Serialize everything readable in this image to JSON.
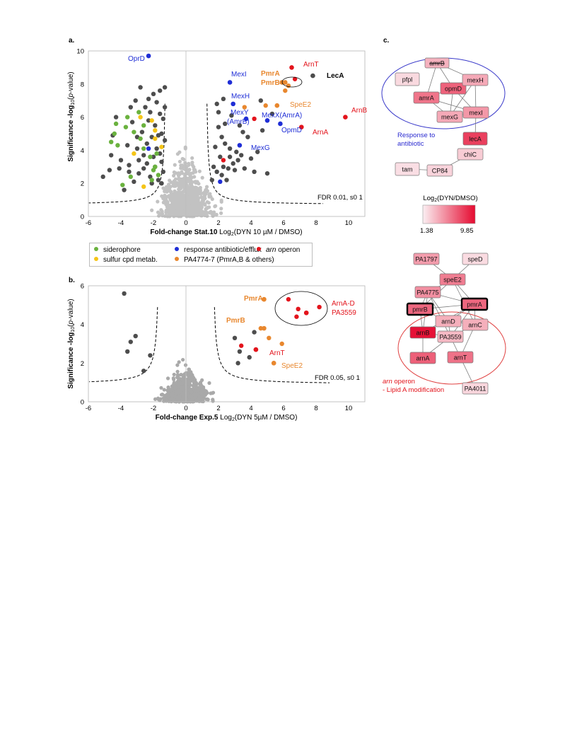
{
  "panels": {
    "a": {
      "label": "a.",
      "fdr": "FDR 0.01, s0 1"
    },
    "b": {
      "label": "b.",
      "fdr": "FDR 0.05, s0 1"
    },
    "c": {
      "label": "c."
    }
  },
  "colors": {
    "background_points": "#c2c2c2",
    "background_points_b": "#a9a9a9",
    "significant": "#4d4d4d",
    "siderophore": "#6ab23e",
    "sulfur": "#f5c518",
    "antibiotic": "#1f2ed6",
    "pa4774": "#e8872e",
    "arn": "#e3141c",
    "net_edge": "#7d7d7d",
    "net_border": "#777777",
    "ellipse_blue": "#3a3aca",
    "ellipse_red": "#e04040"
  },
  "legend": {
    "items": [
      {
        "label": "siderophore",
        "group": "siderophore"
      },
      {
        "label": "sulfur cpd metab.",
        "group": "sulfur"
      },
      {
        "label": "response antibiotic/efflux",
        "group": "antibiotic"
      },
      {
        "label": "PA4774-7 (PmrA,B & others)",
        "group": "pa4774"
      },
      {
        "label_italic": "arn",
        "label": " operon",
        "group": "arn"
      }
    ]
  },
  "chart_data": [
    {
      "type": "scatter",
      "panel": "a",
      "ylabel": "Significance -log10(p-value)",
      "ylabel_parts": [
        "Significance -log",
        "10",
        "(",
        "p",
        "-value)"
      ],
      "xlabel_bold": "Fold-change Stat.10",
      "xlabel_rest": " Log2(DYN 10 µM / DMSO)",
      "xlabel_rest_parts": [
        " Log",
        "2",
        "(DYN 10 µM / DMSO)"
      ],
      "xlim": [
        -6,
        11
      ],
      "ylim": [
        0,
        10
      ],
      "xticks": [
        -6,
        -4,
        -2,
        0,
        2,
        4,
        6,
        8,
        10
      ],
      "yticks": [
        0,
        2,
        4,
        6,
        8,
        10
      ],
      "threshold_s0": 1.2,
      "threshold_curve_c": 0.55,
      "threshold_floor": 0.7,
      "labeled_points": [
        {
          "name": "OprD",
          "x": -2.3,
          "y": 9.7,
          "group": "antibiotic"
        },
        {
          "name": "MexI",
          "x": 2.7,
          "y": 8.1,
          "group": "antibiotic"
        },
        {
          "name": "MexH",
          "x": 2.9,
          "y": 6.8,
          "group": "antibiotic"
        },
        {
          "name": "MexY (AmrB)",
          "x": 3.7,
          "y": 5.9,
          "group": "antibiotic"
        },
        {
          "name": "MexX(AmrA)",
          "x": 5.0,
          "y": 5.8,
          "group": "antibiotic"
        },
        {
          "name": "OpmD",
          "x": 5.8,
          "y": 5.6,
          "group": "antibiotic"
        },
        {
          "name": "MexG",
          "x": 3.3,
          "y": 4.3,
          "group": "antibiotic"
        },
        {
          "name": "PmrA",
          "x": 5.9,
          "y": 8.1,
          "group": "pa4774"
        },
        {
          "name": "PmrB",
          "x": 6.1,
          "y": 8.1,
          "group": "pa4774"
        },
        {
          "name": "SpeE2",
          "x": 5.6,
          "y": 6.7,
          "group": "pa4774"
        },
        {
          "name": "ArnT",
          "x": 6.5,
          "y": 9.0,
          "group": "arn"
        },
        {
          "name": "ArnB",
          "x": 9.8,
          "y": 6.0,
          "group": "arn"
        },
        {
          "name": "ArnA",
          "x": 7.1,
          "y": 5.4,
          "group": "arn"
        },
        {
          "name": "LecA",
          "x": 7.8,
          "y": 8.5,
          "group": "significant"
        }
      ],
      "annotation_labels": {
        "OprD": "OprD",
        "MexI": "MexI",
        "MexH": "MexH",
        "MexY": "MexY",
        "AmrB": "(AmrB)",
        "MexX": "MexX(AmrA)",
        "OpmD": "OpmD",
        "MexG": "MexG",
        "PmrA": "PmrA",
        "PmrB": "PmrB",
        "SpeE2": "SpeE2",
        "ArnT": "ArnT",
        "ArnB": "ArnB",
        "ArnA": "ArnA",
        "LecA": "LecA"
      },
      "group_points": {
        "siderophore": [
          [
            -4.6,
            4.5
          ],
          [
            -4.4,
            5.0
          ],
          [
            -4.2,
            4.3
          ],
          [
            -3.7,
            5.4
          ],
          [
            -3.6,
            6.0
          ],
          [
            -3.2,
            5.1
          ],
          [
            -2.9,
            6.3
          ],
          [
            -2.6,
            5.5
          ],
          [
            -2.6,
            4.1
          ],
          [
            -2.2,
            3.6
          ],
          [
            -2.1,
            2.2
          ],
          [
            -1.7,
            2.5
          ],
          [
            -1.9,
            3.0
          ],
          [
            -2.0,
            2.8
          ],
          [
            -4.3,
            5.6
          ],
          [
            -3.9,
            1.9
          ],
          [
            -3.4,
            2.4
          ],
          [
            -2.8,
            4.7
          ],
          [
            -1.8,
            3.8
          ]
        ],
        "sulfur": [
          [
            -2.8,
            6.0
          ],
          [
            -2.1,
            5.8
          ],
          [
            -1.9,
            4.7
          ],
          [
            -1.5,
            4.2
          ],
          [
            -3.2,
            3.8
          ],
          [
            -2.6,
            1.8
          ],
          [
            -1.9,
            5.2
          ]
        ],
        "antibiotic": [
          [
            2.1,
            2.1
          ],
          [
            -2.3,
            4.1
          ]
        ],
        "pa4774": [
          [
            3.6,
            6.6
          ],
          [
            4.9,
            6.7
          ],
          [
            6.1,
            7.6
          ],
          [
            6.3,
            7.9
          ]
        ],
        "arn": [
          [
            6.7,
            8.3
          ],
          [
            4.2,
            5.9
          ],
          [
            2.3,
            3.4
          ]
        ]
      },
      "significant_points": [
        [
          -5.1,
          2.4
        ],
        [
          -4.6,
          3.7
        ],
        [
          -4.5,
          4.9
        ],
        [
          -4.3,
          6.0
        ],
        [
          -4.1,
          2.9
        ],
        [
          -4.0,
          3.4
        ],
        [
          -3.8,
          1.6
        ],
        [
          -3.6,
          4.3
        ],
        [
          -3.5,
          3.1
        ],
        [
          -3.4,
          6.6
        ],
        [
          -3.3,
          5.7
        ],
        [
          -3.2,
          2.1
        ],
        [
          -3.1,
          7.0
        ],
        [
          -3.0,
          4.8
        ],
        [
          -2.9,
          3.4
        ],
        [
          -2.9,
          2.6
        ],
        [
          -2.8,
          7.8
        ],
        [
          -2.7,
          5.1
        ],
        [
          -2.6,
          2.9
        ],
        [
          -2.5,
          6.6
        ],
        [
          -2.4,
          4.4
        ],
        [
          -2.4,
          3.2
        ],
        [
          -2.3,
          7.1
        ],
        [
          -2.3,
          5.8
        ],
        [
          -2.2,
          6.3
        ],
        [
          -2.2,
          2.4
        ],
        [
          -2.1,
          4.8
        ],
        [
          -2.0,
          7.4
        ],
        [
          -2.0,
          3.6
        ],
        [
          -1.9,
          5.5
        ],
        [
          -1.9,
          3.0
        ],
        [
          -1.8,
          6.9
        ],
        [
          -1.8,
          4.1
        ],
        [
          -1.7,
          2.2
        ],
        [
          -1.6,
          6.2
        ],
        [
          -1.6,
          7.6
        ],
        [
          -1.5,
          5.0
        ],
        [
          -1.5,
          3.3
        ],
        [
          -1.4,
          2.7
        ],
        [
          -1.4,
          5.9
        ],
        [
          -1.3,
          7.8
        ],
        [
          -1.3,
          4.6
        ],
        [
          -1.3,
          6.6
        ],
        [
          -1.5,
          2.0
        ],
        [
          -1.6,
          3.8
        ],
        [
          -1.7,
          4.9
        ],
        [
          -2.1,
          2.0
        ],
        [
          -2.6,
          3.7
        ],
        [
          -3.0,
          4.1
        ],
        [
          -3.5,
          2.7
        ],
        [
          -4.7,
          2.8
        ],
        [
          1.6,
          2.2
        ],
        [
          1.7,
          3.0
        ],
        [
          1.8,
          4.2
        ],
        [
          1.9,
          2.7
        ],
        [
          2.0,
          5.4
        ],
        [
          2.0,
          6.3
        ],
        [
          2.1,
          3.6
        ],
        [
          2.2,
          2.5
        ],
        [
          2.2,
          4.8
        ],
        [
          2.3,
          3.0
        ],
        [
          2.4,
          4.4
        ],
        [
          2.4,
          5.6
        ],
        [
          2.6,
          2.9
        ],
        [
          2.7,
          4.1
        ],
        [
          2.7,
          3.6
        ],
        [
          2.8,
          6.1
        ],
        [
          2.9,
          3.2
        ],
        [
          3.0,
          2.8
        ],
        [
          3.1,
          3.9
        ],
        [
          3.2,
          3.4
        ],
        [
          3.4,
          3.7
        ],
        [
          3.5,
          5.1
        ],
        [
          3.6,
          2.9
        ],
        [
          3.8,
          4.8
        ],
        [
          4.0,
          3.5
        ],
        [
          4.2,
          2.7
        ],
        [
          4.4,
          3.9
        ],
        [
          4.7,
          5.2
        ],
        [
          5.0,
          2.6
        ],
        [
          1.9,
          6.8
        ],
        [
          2.3,
          7.1
        ],
        [
          3.3,
          5.5
        ],
        [
          2.5,
          2.2
        ],
        [
          4.6,
          7.0
        ],
        [
          5.3,
          6.2
        ]
      ],
      "background_cloud": {
        "sigma_x": 0.7,
        "sigma_y": 1.6,
        "count": 700,
        "seed": 7
      }
    },
    {
      "type": "scatter",
      "panel": "b",
      "ylabel": "Significance -log10(p-value)",
      "ylabel_parts": [
        "Significance -log",
        "10",
        "(",
        "p",
        "-value)"
      ],
      "xlabel_bold": "Fold-change Exp.5",
      "xlabel_rest": " Log2(DYN 5µM / DMSO)",
      "xlabel_rest_parts": [
        " Log",
        "2",
        "(DYN 5µM / DMSO)"
      ],
      "xlim": [
        -6,
        11
      ],
      "ylim": [
        0,
        6
      ],
      "xticks": [
        -6,
        -4,
        -2,
        0,
        2,
        4,
        6,
        8,
        10
      ],
      "yticks": [
        0,
        2,
        4,
        6
      ],
      "threshold_s0": 1.6,
      "threshold_curve_c": 0.6,
      "threshold_floor": 0.9,
      "labeled_points": [
        {
          "name": "PmrA",
          "x": 4.8,
          "y": 5.3,
          "group": "pa4774"
        },
        {
          "name": "PmrB",
          "x": 4.8,
          "y": 3.8,
          "group": "pa4774"
        },
        {
          "name": "SpeE2",
          "x": 5.4,
          "y": 2.0,
          "group": "pa4774"
        },
        {
          "name": "ArnT",
          "x": 4.3,
          "y": 2.7,
          "group": "arn"
        },
        {
          "name": "ArnA-D PA3559",
          "x": 7.4,
          "y": 4.6,
          "group": "arn"
        }
      ],
      "annotation_labels": {
        "PmrA": "PmrA",
        "PmrB": "PmrB",
        "SpeE2": "SpeE2",
        "ArnT": "ArnT",
        "ArnAD": "ArnA-D",
        "PA3559": "PA3559"
      },
      "group_points": {
        "pa4774": [
          [
            4.8,
            5.3
          ],
          [
            4.6,
            3.8
          ],
          [
            5.1,
            3.3
          ],
          [
            5.9,
            3.0
          ],
          [
            5.4,
            2.0
          ]
        ],
        "arn": [
          [
            6.3,
            5.3
          ],
          [
            6.9,
            4.8
          ],
          [
            6.8,
            4.4
          ],
          [
            7.4,
            4.6
          ],
          [
            8.2,
            4.9
          ],
          [
            4.3,
            2.7
          ],
          [
            3.4,
            2.9
          ]
        ]
      },
      "significant_points": [
        [
          -3.8,
          5.6
        ],
        [
          -3.6,
          2.6
        ],
        [
          -3.1,
          3.4
        ],
        [
          -3.4,
          3.1
        ],
        [
          -2.2,
          2.4
        ],
        [
          3.0,
          3.3
        ],
        [
          3.3,
          2.6
        ],
        [
          3.9,
          2.3
        ],
        [
          4.2,
          3.6
        ],
        [
          -2.6,
          1.6
        ],
        [
          3.2,
          2.0
        ]
      ],
      "background_cloud": {
        "sigma_x": 0.65,
        "sigma_y": 0.7,
        "count": 650,
        "seed": 13
      }
    }
  ],
  "network": {
    "scale_title": "Log2(DYN/DMSO)",
    "scale_title_parts": [
      "Log",
      "2",
      "(DYN/DMSO)"
    ],
    "scale_min": "1.38",
    "scale_max": "9.85",
    "cluster1_label": "Response to antibiotic",
    "cluster1_label_lines": [
      "Response to",
      "antibiotic"
    ],
    "cluster2_label_italic": "arn",
    "cluster2_label_rest": " operon",
    "cluster2_label_line2": "- Lipid A modification",
    "nodes": [
      {
        "id": "amrB",
        "label": "amrB",
        "value": 3.5,
        "strike": true
      },
      {
        "id": "pfpl",
        "label": "pfpl",
        "value": 2.0
      },
      {
        "id": "opmD",
        "label": "opmD",
        "value": 6.5
      },
      {
        "id": "mexH",
        "label": "mexH",
        "value": 3.8
      },
      {
        "id": "amrA",
        "label": "amrA",
        "value": 5.8
      },
      {
        "id": "mexG",
        "label": "mexG",
        "value": 3.8
      },
      {
        "id": "mexI",
        "label": "mexI",
        "value": 4.5
      },
      {
        "id": "lecA",
        "label": "lecA",
        "value": 7.8
      },
      {
        "id": "chiC",
        "label": "chiC",
        "value": 2.5
      },
      {
        "id": "tam",
        "label": "tam",
        "value": 1.8
      },
      {
        "id": "CP84",
        "label": "CP84",
        "value": 2.2
      },
      {
        "id": "PA1797",
        "label": "PA1797",
        "value": 4.3
      },
      {
        "id": "speD",
        "label": "speD",
        "value": 1.9
      },
      {
        "id": "speE2",
        "label": "speE2",
        "value": 5.5
      },
      {
        "id": "PA4775",
        "label": "PA4775",
        "value": 4.8
      },
      {
        "id": "pmrB",
        "label": "pmrB",
        "value": 6.3,
        "bold_border": true
      },
      {
        "id": "pmrA",
        "label": "pmrA",
        "value": 6.3,
        "bold_border": true
      },
      {
        "id": "arnD",
        "label": "arnD",
        "value": 3.6
      },
      {
        "id": "arnC",
        "label": "arnC",
        "value": 3.6
      },
      {
        "id": "arnB",
        "label": "arnB",
        "value": 9.6
      },
      {
        "id": "PA3559",
        "label": "PA3559",
        "value": 3.2
      },
      {
        "id": "arnA",
        "label": "arnA",
        "value": 6.6
      },
      {
        "id": "arnT",
        "label": "arnT",
        "value": 5.9
      },
      {
        "id": "PA4011",
        "label": "PA4011",
        "value": 2.1
      }
    ],
    "edges": [
      [
        "amrB",
        "opmD"
      ],
      [
        "amrB",
        "amrA"
      ],
      [
        "amrB",
        "mexH"
      ],
      [
        "amrA",
        "opmD"
      ],
      [
        "amrA",
        "mexG"
      ],
      [
        "amrA",
        "mexI"
      ],
      [
        "opmD",
        "mexH"
      ],
      [
        "opmD",
        "mexG"
      ],
      [
        "opmD",
        "mexI"
      ],
      [
        "mexH",
        "mexI"
      ],
      [
        "mexH",
        "mexG"
      ],
      [
        "mexG",
        "mexI"
      ],
      [
        "mexI",
        "lecA"
      ],
      [
        "chiC",
        "CP84"
      ],
      [
        "tam",
        "CP84"
      ],
      [
        "PA1797",
        "speE2"
      ],
      [
        "speD",
        "speE2"
      ],
      [
        "speE2",
        "PA4775"
      ],
      [
        "speE2",
        "pmrA"
      ],
      [
        "speE2",
        "pmrB"
      ],
      [
        "PA4775",
        "pmrB"
      ],
      [
        "PA4775",
        "pmrA"
      ],
      [
        "PA4775",
        "arnD"
      ],
      [
        "PA4775",
        "PA3559"
      ],
      [
        "pmrB",
        "pmrA"
      ],
      [
        "pmrB",
        "arnB"
      ],
      [
        "pmrB",
        "arnD"
      ],
      [
        "pmrA",
        "arnB"
      ],
      [
        "pmrA",
        "arnC"
      ],
      [
        "pmrA",
        "arnD"
      ],
      [
        "pmrA",
        "PA3559"
      ],
      [
        "arnB",
        "arnD"
      ],
      [
        "arnB",
        "PA3559"
      ],
      [
        "arnB",
        "arnA"
      ],
      [
        "arnD",
        "arnC"
      ],
      [
        "arnD",
        "PA3559"
      ],
      [
        "arnC",
        "PA3559"
      ],
      [
        "arnC",
        "arnT"
      ],
      [
        "PA3559",
        "arnT"
      ],
      [
        "arnA",
        "PA3559"
      ],
      [
        "arnT",
        "PA4011"
      ],
      [
        "speE2",
        "arnC"
      ],
      [
        "PA4775",
        "arnB"
      ]
    ]
  }
}
